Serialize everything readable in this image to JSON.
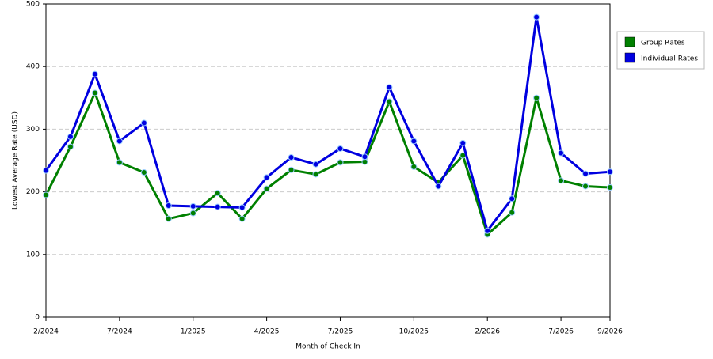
{
  "chart_data": {
    "type": "line",
    "x_label": "Month of Check In",
    "y_label": "Lowest Average Rate (USD)",
    "categories": [
      "2/2024",
      null,
      null,
      "7/2024",
      null,
      null,
      "1/2025",
      null,
      null,
      "4/2025",
      null,
      null,
      "7/2025",
      null,
      null,
      "10/2025",
      null,
      null,
      "2/2026",
      null,
      null,
      "7/2026",
      null,
      "9/2026"
    ],
    "series": [
      {
        "name": "Group Rates",
        "color": "#008000",
        "values": [
          195,
          272,
          358,
          247,
          231,
          157,
          166,
          198,
          157,
          205,
          235,
          228,
          247,
          248,
          344,
          240,
          215,
          258,
          132,
          167,
          350,
          218,
          209,
          207
        ]
      },
      {
        "name": "Individual Rates",
        "color": "#0000e0",
        "values": [
          234,
          288,
          388,
          281,
          310,
          178,
          177,
          176,
          175,
          223,
          255,
          244,
          269,
          256,
          367,
          281,
          209,
          278,
          138,
          189,
          479,
          262,
          229,
          232
        ]
      }
    ],
    "ylim": [
      0,
      500
    ],
    "yticks": [
      0,
      100,
      200,
      300,
      400,
      500
    ],
    "grid": true,
    "legend": "right"
  }
}
